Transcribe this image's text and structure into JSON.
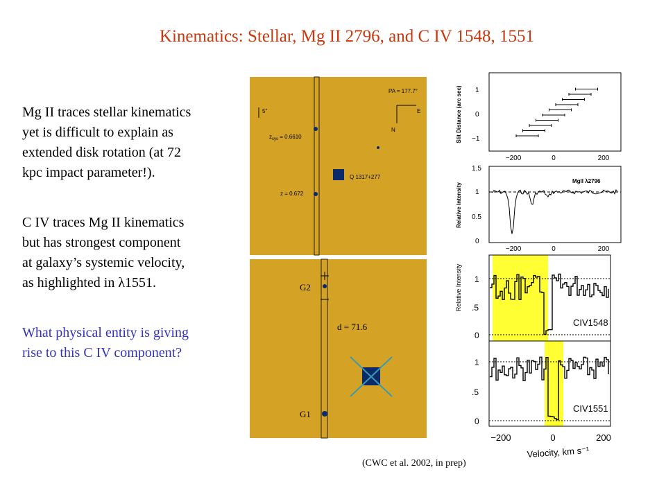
{
  "title": "Kinematics:   Stellar, Mg II 2796, and C IV 1548, 1551",
  "body": {
    "paragraphs": [
      [
        "Mg II traces stellar kinematics",
        "yet is difficult to explain as",
        "extended disk rotation (at 72",
        "kpc impact parameter!)."
      ],
      [
        "C IV traces Mg II kinematics",
        "but has strongest component",
        "at galaxy’s systemic velocity,",
        "as highlighted in λ1551."
      ],
      [
        "What physical entity is giving",
        "rise to this C IV component?"
      ]
    ]
  },
  "image_top": {
    "pa": "PA = 177.7°",
    "scale": "5\"",
    "east": "E",
    "north": "N",
    "zsys_z": "z",
    "zsys_sub": "sys",
    "zsys_val": " = 0.6610",
    "quasar": "Q 1317+277",
    "z_abs": "z = 0.672"
  },
  "image_bottom": {
    "g2": "G2",
    "distance": "d = 71.6",
    "g1": "G1"
  },
  "plot_slit": {
    "ylabel": "Slit Distance (arc sec)",
    "yticks": [
      "1",
      "0",
      "−1"
    ],
    "xticks": [
      "−200",
      "0",
      "200"
    ]
  },
  "plot_mgii": {
    "ylabel": "Relative Intensity",
    "label": "MgII λ2796",
    "yticks": [
      "1.5",
      "1",
      "0.5",
      "0"
    ],
    "xticks": [
      "−200",
      "0",
      "200"
    ]
  },
  "plot_civ": {
    "ylabel": "Relative Intensity",
    "label_top": "CIV1548",
    "label_bottom": "CIV1551",
    "yticks_top": [
      "1",
      ".5",
      "0"
    ],
    "yticks_bottom": [
      "1",
      ".5",
      "0"
    ],
    "xticks": [
      "−200",
      "0",
      "200"
    ],
    "xlabel": "Velocity, km s⁻¹"
  },
  "caption": "(CWC et al. 2002,  in prep)"
}
